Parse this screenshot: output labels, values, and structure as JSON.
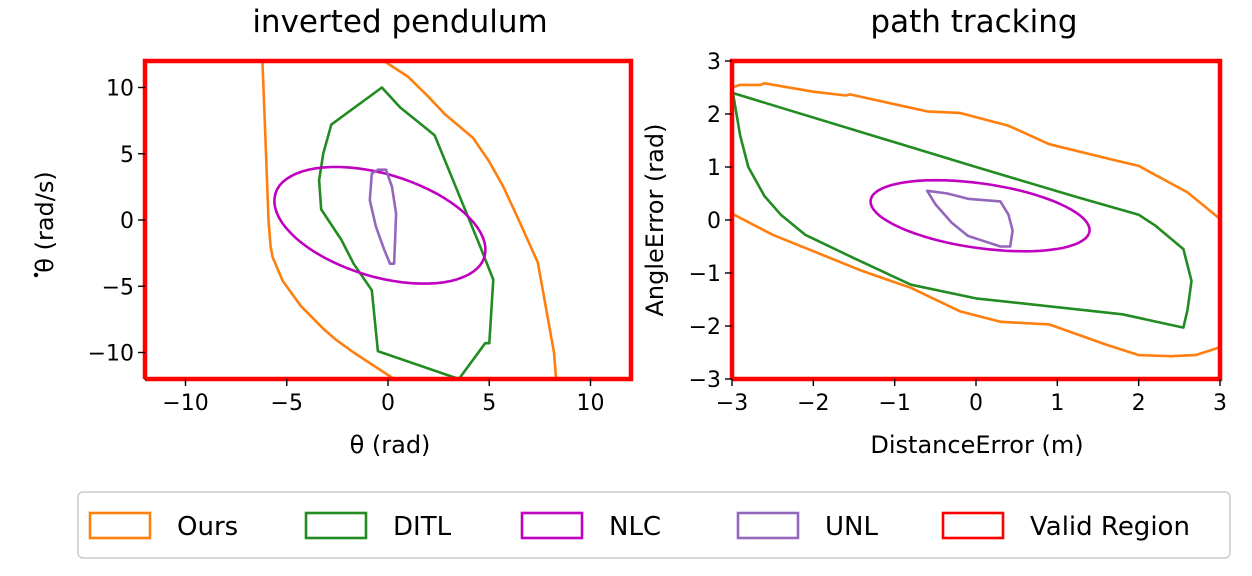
{
  "chart_data": [
    {
      "type": "line",
      "title": "inverted pendulum",
      "xlabel": "θ (rad)",
      "ylabel_symbol": "θ",
      "ylabel_unit": "(rad/s)",
      "xlim": [
        -12,
        12
      ],
      "ylim": [
        -12,
        12
      ],
      "xticks": [
        -10,
        -5,
        0,
        5,
        10
      ],
      "yticks": [
        -10,
        -5,
        0,
        5,
        10
      ],
      "grid": false,
      "series": [
        {
          "name": "Valid Region",
          "color": "#ff0000",
          "x": [
            -12,
            12,
            12,
            -12,
            -12
          ],
          "y": [
            -12,
            -12,
            12,
            12,
            -12
          ]
        },
        {
          "name": "Ours",
          "color": "#ff7f0e",
          "segments": [
            {
              "x": [
                -6.2,
                -6.1,
                -6.0,
                -5.9,
                -5.8,
                -5.8,
                -5.7,
                -5.2,
                -4.3,
                -3.2,
                -2.6,
                -1.7,
                0.3
              ],
              "y": [
                12,
                8,
                4,
                0,
                -2,
                -2,
                -2.8,
                -4.6,
                -6.5,
                -8.2,
                -9,
                -10,
                -12
              ]
            },
            {
              "x": [
                -0.2,
                1.0,
                2.0,
                2.8,
                4.2,
                5.0,
                5.7,
                6.4,
                7.4,
                8.2,
                8.3
              ],
              "y": [
                12,
                10.8,
                9.3,
                8.0,
                6.2,
                4.4,
                2.5,
                0.2,
                -3.2,
                -10,
                -12
              ]
            }
          ]
        },
        {
          "name": "DITL",
          "color": "#228b22",
          "closed": true,
          "x": [
            -0.3,
            -2.8,
            -3.2,
            -3.4,
            -3.3,
            -2.3,
            -1.7,
            -0.8,
            -0.5,
            3.5,
            4.8,
            5.0,
            5.2,
            4.5,
            2.3,
            0.6,
            -0.3
          ],
          "y": [
            10,
            7.2,
            5,
            3,
            0.8,
            -1.5,
            -3.3,
            -5.3,
            -9.9,
            -12,
            -9.3,
            -9.3,
            -4.5,
            -1.8,
            6.4,
            8.5,
            10
          ]
        },
        {
          "name": "NLC",
          "color": "#c000c0",
          "type": "ellipse",
          "center": [
            -0.4,
            -0.4
          ],
          "semi_major": 5.8,
          "semi_minor": 3.6,
          "angle_deg": -34
        },
        {
          "name": "UNL",
          "color": "#9467bd",
          "closed": true,
          "x": [
            -0.8,
            -0.9,
            -0.6,
            -0.2,
            0.1,
            0.3,
            0.35,
            0.4,
            0.2,
            -0.1,
            -0.5,
            -0.8
          ],
          "y": [
            3.5,
            1.5,
            -0.5,
            -2.2,
            -3.3,
            -3.3,
            -1.5,
            0.5,
            2.5,
            3.8,
            3.8,
            3.5
          ]
        }
      ]
    },
    {
      "type": "line",
      "title": "path tracking",
      "xlabel": "DistanceError (m)",
      "ylabel": "AngleError (rad)",
      "xlim": [
        -3,
        3
      ],
      "ylim": [
        -3,
        3
      ],
      "xticks": [
        -3,
        -2,
        -1,
        0,
        1,
        2,
        3
      ],
      "yticks": [
        -3,
        -2,
        -1,
        0,
        1,
        2,
        3
      ],
      "grid": false,
      "series": [
        {
          "name": "Valid Region",
          "color": "#ff0000",
          "x": [
            -3,
            3,
            3,
            -3,
            -3
          ],
          "y": [
            -3,
            -3,
            3,
            3,
            -3
          ]
        },
        {
          "name": "Ours",
          "color": "#ff7f0e",
          "segments": [
            {
              "x": [
                -3,
                -2.9,
                -2.65,
                -2.6,
                -2.0,
                -1.6,
                -1.55,
                -0.6,
                -0.2,
                0.4,
                0.9,
                1.7,
                2.0,
                2.6,
                3.0
              ],
              "y": [
                2.5,
                2.55,
                2.55,
                2.58,
                2.42,
                2.35,
                2.37,
                2.05,
                2.02,
                1.78,
                1.43,
                1.13,
                1.02,
                0.52,
                0.02
              ]
            },
            {
              "x": [
                -3,
                -2.5,
                -1.4,
                -0.8,
                -0.2,
                0.3,
                0.9,
                1.6,
                2.0,
                2.4,
                2.7,
                3.0
              ],
              "y": [
                0.12,
                -0.28,
                -0.96,
                -1.28,
                -1.72,
                -1.92,
                -1.97,
                -2.35,
                -2.55,
                -2.57,
                -2.55,
                -2.4
              ]
            }
          ]
        },
        {
          "name": "DITL",
          "color": "#228b22",
          "closed": true,
          "x": [
            -3,
            -2.9,
            -2.8,
            -2.6,
            -2.4,
            -2.1,
            -1.5,
            -0.8,
            0.0,
            1.8,
            2.55,
            2.6,
            2.65,
            2.55,
            2.2,
            2.0,
            1.2,
            0.0,
            -3.0
          ],
          "y": [
            2.5,
            1.6,
            1.0,
            0.45,
            0.1,
            -0.28,
            -0.72,
            -1.22,
            -1.48,
            -1.78,
            -2.03,
            -1.7,
            -1.15,
            -0.55,
            -0.1,
            0.1,
            0.45,
            1.0,
            2.4
          ]
        },
        {
          "name": "NLC",
          "color": "#c000c0",
          "type": "ellipse",
          "center": [
            0.05,
            0.08
          ],
          "semi_major": 1.38,
          "semi_minor": 0.6,
          "angle_deg": -14
        },
        {
          "name": "UNL",
          "color": "#9467bd",
          "closed": true,
          "x": [
            -0.6,
            -0.35,
            -0.1,
            0.3,
            0.4,
            0.45,
            0.42,
            0.3,
            0.1,
            -0.1,
            -0.3,
            -0.5,
            -0.6
          ],
          "y": [
            0.55,
            0.5,
            0.4,
            0.35,
            0.1,
            -0.2,
            -0.5,
            -0.5,
            -0.4,
            -0.3,
            -0.05,
            0.3,
            0.55
          ]
        }
      ]
    }
  ],
  "legend": {
    "placement": "bottom-center",
    "items": [
      {
        "label": "Ours",
        "color": "#ff7f0e"
      },
      {
        "label": "DITL",
        "color": "#228b22"
      },
      {
        "label": "NLC",
        "color": "#c000c0"
      },
      {
        "label": "UNL",
        "color": "#9467bd"
      },
      {
        "label": "Valid Region",
        "color": "#ff0000"
      }
    ]
  }
}
